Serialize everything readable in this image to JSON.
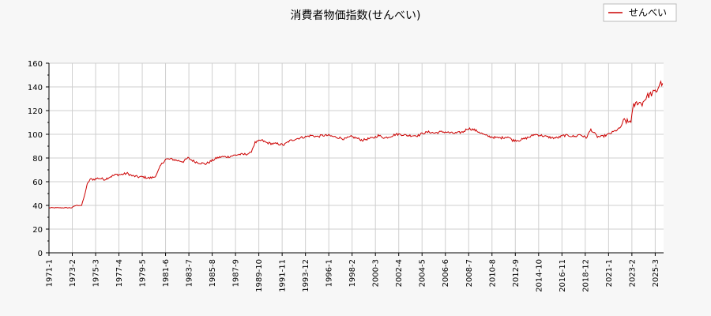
{
  "chart_data": {
    "type": "line",
    "title": "消費者物価指数(せんべい)",
    "xlabel": "",
    "ylabel": "",
    "ylim": [
      0,
      160
    ],
    "yticks": [
      0,
      20,
      40,
      60,
      80,
      100,
      120,
      140,
      160
    ],
    "x_tick_labels": [
      "1971-1",
      "1973-2",
      "1975-3",
      "1977-4",
      "1979-5",
      "1981-6",
      "1983-7",
      "1985-8",
      "1987-9",
      "1989-10",
      "1991-11",
      "1993-12",
      "1996-1",
      "1998-2",
      "2000-3",
      "2002-4",
      "2004-5",
      "2006-6",
      "2008-7",
      "2010-8",
      "2012-9",
      "2014-10",
      "2016-11",
      "2018-12",
      "2021-1",
      "2023-2",
      "2025-3"
    ],
    "xlim": [
      "1971-01",
      "2025-12"
    ],
    "grid": true,
    "legend_position": "top-right",
    "series": [
      {
        "name": "せんべい",
        "color": "#cc0000",
        "points": [
          [
            "1971-01",
            38
          ],
          [
            "1972-06",
            38
          ],
          [
            "1973-01",
            38
          ],
          [
            "1973-06",
            40
          ],
          [
            "1973-12",
            40
          ],
          [
            "1974-03",
            48
          ],
          [
            "1974-06",
            58
          ],
          [
            "1974-09",
            62
          ],
          [
            "1975-01",
            62
          ],
          [
            "1975-06",
            63
          ],
          [
            "1976-01",
            62
          ],
          [
            "1976-06",
            64
          ],
          [
            "1977-01",
            66
          ],
          [
            "1977-06",
            66
          ],
          [
            "1978-01",
            67
          ],
          [
            "1978-06",
            65
          ],
          [
            "1979-01",
            64
          ],
          [
            "1979-06",
            64
          ],
          [
            "1980-01",
            63
          ],
          [
            "1980-06",
            64
          ],
          [
            "1980-09",
            67
          ],
          [
            "1981-01",
            74
          ],
          [
            "1981-06",
            79
          ],
          [
            "1982-01",
            79
          ],
          [
            "1982-06",
            78
          ],
          [
            "1983-01",
            77
          ],
          [
            "1983-06",
            80
          ],
          [
            "1984-01",
            77
          ],
          [
            "1984-06",
            76
          ],
          [
            "1985-01",
            75
          ],
          [
            "1985-06",
            77
          ],
          [
            "1986-01",
            80
          ],
          [
            "1986-06",
            81
          ],
          [
            "1987-01",
            81
          ],
          [
            "1987-06",
            82
          ],
          [
            "1988-01",
            83
          ],
          [
            "1988-06",
            83
          ],
          [
            "1989-01",
            84
          ],
          [
            "1989-06",
            93
          ],
          [
            "1990-01",
            95
          ],
          [
            "1990-06",
            93
          ],
          [
            "1991-01",
            92
          ],
          [
            "1991-06",
            92
          ],
          [
            "1992-01",
            91
          ],
          [
            "1992-06",
            94
          ],
          [
            "1993-01",
            96
          ],
          [
            "1993-06",
            97
          ],
          [
            "1994-01",
            98
          ],
          [
            "1994-06",
            99
          ],
          [
            "1995-01",
            98
          ],
          [
            "1995-06",
            99
          ],
          [
            "1996-01",
            99
          ],
          [
            "1996-06",
            98
          ],
          [
            "1997-01",
            97
          ],
          [
            "1997-06",
            96
          ],
          [
            "1998-01",
            98
          ],
          [
            "1998-06",
            97
          ],
          [
            "1999-01",
            95
          ],
          [
            "1999-06",
            96
          ],
          [
            "2000-01",
            97
          ],
          [
            "2000-06",
            99
          ],
          [
            "2001-01",
            97
          ],
          [
            "2001-06",
            98
          ],
          [
            "2002-01",
            100
          ],
          [
            "2002-06",
            100
          ],
          [
            "2003-01",
            99
          ],
          [
            "2003-06",
            99
          ],
          [
            "2004-01",
            99
          ],
          [
            "2004-06",
            101
          ],
          [
            "2005-01",
            102
          ],
          [
            "2005-06",
            101
          ],
          [
            "2006-01",
            102
          ],
          [
            "2006-06",
            102
          ],
          [
            "2007-01",
            101
          ],
          [
            "2007-06",
            101
          ],
          [
            "2008-01",
            102
          ],
          [
            "2008-06",
            105
          ],
          [
            "2008-12",
            104
          ],
          [
            "2009-06",
            102
          ],
          [
            "2010-01",
            99
          ],
          [
            "2010-06",
            98
          ],
          [
            "2011-01",
            97
          ],
          [
            "2011-06",
            97
          ],
          [
            "2012-01",
            98
          ],
          [
            "2012-06",
            95
          ],
          [
            "2013-01",
            95
          ],
          [
            "2013-06",
            96
          ],
          [
            "2014-01",
            98
          ],
          [
            "2014-06",
            100
          ],
          [
            "2015-01",
            99
          ],
          [
            "2015-06",
            98
          ],
          [
            "2016-01",
            97
          ],
          [
            "2016-06",
            97
          ],
          [
            "2017-01",
            99
          ],
          [
            "2017-06",
            99
          ],
          [
            "2018-01",
            98
          ],
          [
            "2018-06",
            100
          ],
          [
            "2019-01",
            97
          ],
          [
            "2019-06",
            104
          ],
          [
            "2020-01",
            98
          ],
          [
            "2020-06",
            98
          ],
          [
            "2021-01",
            100
          ],
          [
            "2021-06",
            102
          ],
          [
            "2022-01",
            105
          ],
          [
            "2022-06",
            112
          ],
          [
            "2022-10",
            110
          ],
          [
            "2023-01",
            112
          ],
          [
            "2023-04",
            124
          ],
          [
            "2023-08",
            127
          ],
          [
            "2024-01",
            126
          ],
          [
            "2024-06",
            132
          ],
          [
            "2025-01",
            135
          ],
          [
            "2025-05",
            137
          ],
          [
            "2025-08",
            143
          ],
          [
            "2025-11",
            143
          ]
        ]
      }
    ]
  }
}
